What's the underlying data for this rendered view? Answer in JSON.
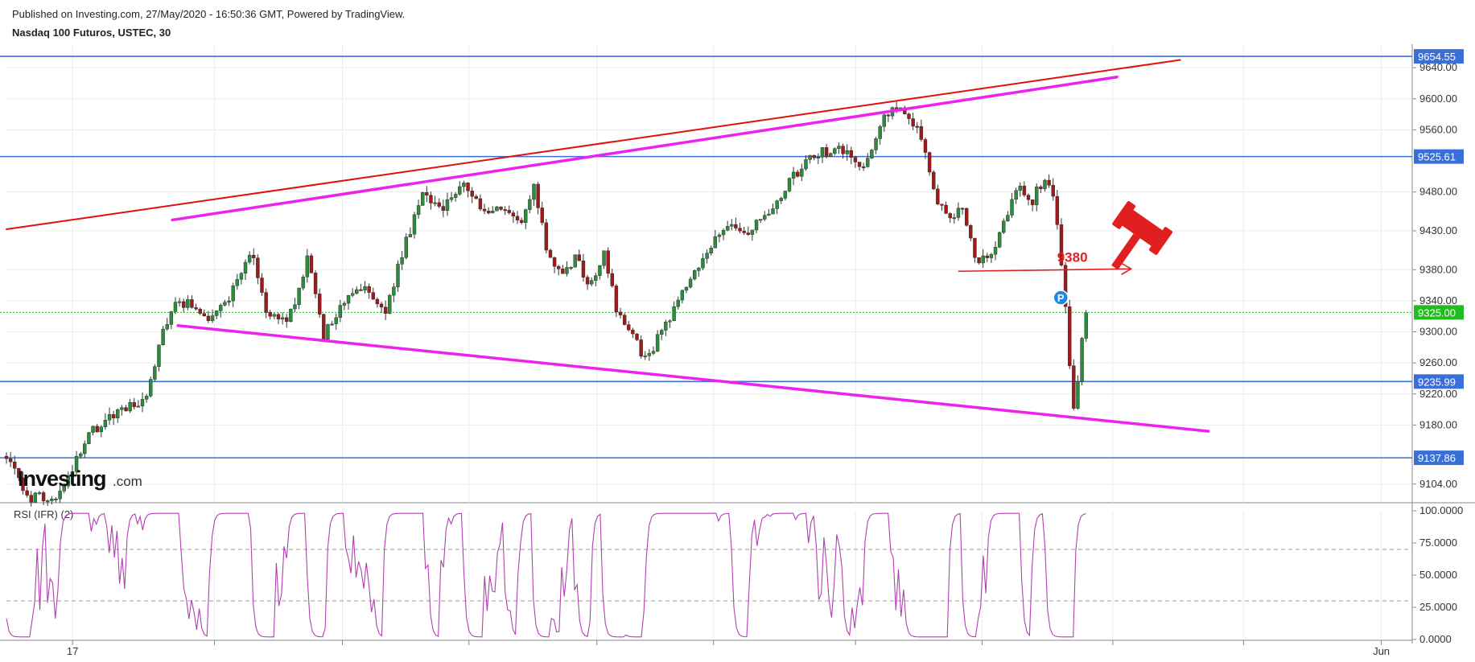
{
  "header": {
    "published": "Published on Investing.com, 27/May/2020 - 16:50:36 GMT, Powered by TradingView.",
    "symbol": "Nasdaq 100 Futuros, USTEC, 30"
  },
  "logo": {
    "brand": "Investing",
    "suffix": ".com"
  },
  "colors": {
    "up_candle": "#2e8b3e",
    "down_candle": "#9c1c1c",
    "wick": "#333333",
    "horizontal_level": "#3a6fd8",
    "channel": "#ee22ee",
    "trend_red": "#e01010",
    "current_price": "#22bb22",
    "rsi_line": "#b040b0",
    "annotation": "#e02020"
  },
  "chart_data": [
    {
      "type": "candlestick",
      "title": "",
      "ylim": [
        9080,
        9665
      ],
      "y_ticks": [
        "9640.00",
        "9600.00",
        "9560.00",
        "9480.00",
        "9430.00",
        "9380.00",
        "9340.00",
        "9300.00",
        "9260.00",
        "9220.00",
        "9180.00",
        "9104.00"
      ],
      "x_labels": [
        {
          "label": "17",
          "t": 0.047
        },
        {
          "label": "Jun",
          "t": 0.978
        }
      ],
      "price_levels": [
        {
          "label": "9654.55",
          "value": 9654.55
        },
        {
          "label": "9525.61",
          "value": 9525.61
        },
        {
          "label": "9235.99",
          "value": 9235.99
        },
        {
          "label": "9137.86",
          "value": 9137.86
        }
      ],
      "current_price": {
        "label": "9325.00",
        "value": 9325.0
      },
      "anchors": [
        {
          "t": 0.0,
          "v": 9140
        },
        {
          "t": 0.015,
          "v": 9085
        },
        {
          "t": 0.04,
          "v": 9090
        },
        {
          "t": 0.05,
          "v": 9140
        },
        {
          "t": 0.06,
          "v": 9170
        },
        {
          "t": 0.075,
          "v": 9195
        },
        {
          "t": 0.09,
          "v": 9205
        },
        {
          "t": 0.1,
          "v": 9220
        },
        {
          "t": 0.11,
          "v": 9290
        },
        {
          "t": 0.118,
          "v": 9330
        },
        {
          "t": 0.13,
          "v": 9340
        },
        {
          "t": 0.145,
          "v": 9310
        },
        {
          "t": 0.16,
          "v": 9350
        },
        {
          "t": 0.175,
          "v": 9405
        },
        {
          "t": 0.185,
          "v": 9320
        },
        {
          "t": 0.2,
          "v": 9310
        },
        {
          "t": 0.215,
          "v": 9400
        },
        {
          "t": 0.225,
          "v": 9295
        },
        {
          "t": 0.24,
          "v": 9340
        },
        {
          "t": 0.255,
          "v": 9355
        },
        {
          "t": 0.27,
          "v": 9330
        },
        {
          "t": 0.285,
          "v": 9420
        },
        {
          "t": 0.297,
          "v": 9480
        },
        {
          "t": 0.31,
          "v": 9460
        },
        {
          "t": 0.325,
          "v": 9495
        },
        {
          "t": 0.34,
          "v": 9450
        },
        {
          "t": 0.355,
          "v": 9460
        },
        {
          "t": 0.365,
          "v": 9440
        },
        {
          "t": 0.375,
          "v": 9490
        },
        {
          "t": 0.385,
          "v": 9400
        },
        {
          "t": 0.395,
          "v": 9380
        },
        {
          "t": 0.405,
          "v": 9395
        },
        {
          "t": 0.415,
          "v": 9360
        },
        {
          "t": 0.425,
          "v": 9400
        },
        {
          "t": 0.435,
          "v": 9320
        },
        {
          "t": 0.445,
          "v": 9300
        },
        {
          "t": 0.455,
          "v": 9260
        },
        {
          "t": 0.465,
          "v": 9300
        },
        {
          "t": 0.475,
          "v": 9330
        },
        {
          "t": 0.485,
          "v": 9360
        },
        {
          "t": 0.5,
          "v": 9410
        },
        {
          "t": 0.515,
          "v": 9440
        },
        {
          "t": 0.53,
          "v": 9430
        },
        {
          "t": 0.545,
          "v": 9460
        },
        {
          "t": 0.56,
          "v": 9500
        },
        {
          "t": 0.575,
          "v": 9530
        },
        {
          "t": 0.595,
          "v": 9535
        },
        {
          "t": 0.61,
          "v": 9510
        },
        {
          "t": 0.62,
          "v": 9560
        },
        {
          "t": 0.63,
          "v": 9590
        },
        {
          "t": 0.64,
          "v": 9585
        },
        {
          "t": 0.65,
          "v": 9550
        },
        {
          "t": 0.66,
          "v": 9480
        },
        {
          "t": 0.67,
          "v": 9440
        },
        {
          "t": 0.68,
          "v": 9460
        },
        {
          "t": 0.69,
          "v": 9390
        },
        {
          "t": 0.7,
          "v": 9395
        },
        {
          "t": 0.71,
          "v": 9440
        },
        {
          "t": 0.72,
          "v": 9490
        },
        {
          "t": 0.73,
          "v": 9470
        },
        {
          "t": 0.74,
          "v": 9505
        },
        {
          "t": 0.748,
          "v": 9440
        },
        {
          "t": 0.752,
          "v": 9360
        },
        {
          "t": 0.756,
          "v": 9260
        },
        {
          "t": 0.76,
          "v": 9190
        },
        {
          "t": 0.764,
          "v": 9270
        },
        {
          "t": 0.768,
          "v": 9325
        }
      ],
      "trendlines": [
        {
          "kind": "red",
          "from": [
            0.0,
            9432
          ],
          "to": [
            0.835,
            9650
          ]
        },
        {
          "kind": "channel",
          "from": [
            0.118,
            9444
          ],
          "to": [
            0.79,
            9628
          ]
        },
        {
          "kind": "channel",
          "from": [
            0.122,
            9308
          ],
          "to": [
            0.855,
            9172
          ]
        }
      ],
      "annotations": [
        {
          "text": "9380",
          "value": 9380,
          "from_t": 0.677,
          "to_t": 0.8
        }
      ],
      "marker": {
        "symbol": "P",
        "t": 0.75,
        "value": 9344
      }
    },
    {
      "type": "line",
      "title": "RSI (IFR) (2)",
      "ylim": [
        0,
        100
      ],
      "y_ticks": [
        "100.0000",
        "75.0000",
        "50.0000",
        "25.0000",
        "0.0000"
      ],
      "reference_levels": [
        70,
        30
      ]
    }
  ]
}
